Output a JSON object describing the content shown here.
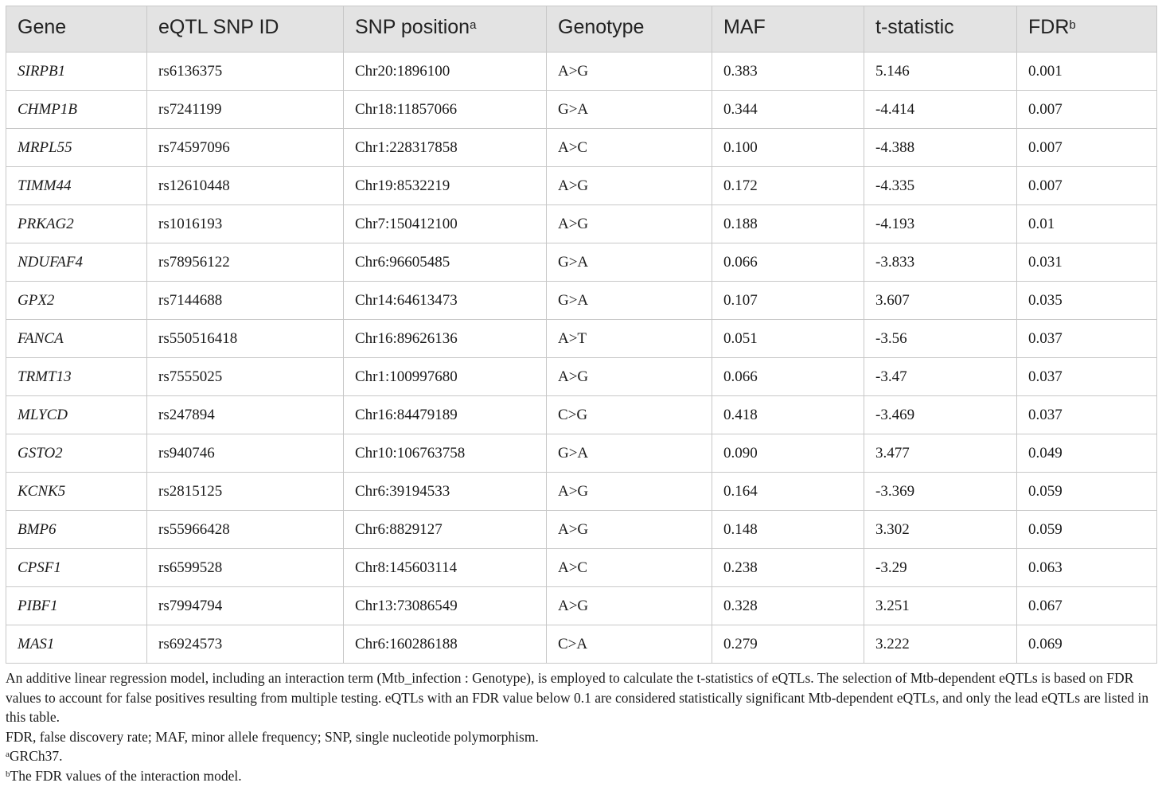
{
  "table": {
    "headers": [
      {
        "label": "Gene",
        "sup": ""
      },
      {
        "label": "eQTL SNP ID",
        "sup": ""
      },
      {
        "label": "SNP position",
        "sup": "a"
      },
      {
        "label": "Genotype",
        "sup": ""
      },
      {
        "label": "MAF",
        "sup": ""
      },
      {
        "label": "t-statistic",
        "sup": ""
      },
      {
        "label": "FDR",
        "sup": "b"
      }
    ],
    "rows": [
      [
        "SIRPB1",
        "rs6136375",
        "Chr20:1896100",
        "A>G",
        "0.383",
        "5.146",
        "0.001"
      ],
      [
        "CHMP1B",
        "rs7241199",
        "Chr18:11857066",
        "G>A",
        "0.344",
        "-4.414",
        "0.007"
      ],
      [
        "MRPL55",
        "rs74597096",
        "Chr1:228317858",
        "A>C",
        "0.100",
        "-4.388",
        "0.007"
      ],
      [
        "TIMM44",
        "rs12610448",
        "Chr19:8532219",
        "A>G",
        "0.172",
        "-4.335",
        "0.007"
      ],
      [
        "PRKAG2",
        "rs1016193",
        "Chr7:150412100",
        "A>G",
        "0.188",
        "-4.193",
        "0.01"
      ],
      [
        "NDUFAF4",
        "rs78956122",
        "Chr6:96605485",
        "G>A",
        "0.066",
        "-3.833",
        "0.031"
      ],
      [
        "GPX2",
        "rs7144688",
        "Chr14:64613473",
        "G>A",
        "0.107",
        "3.607",
        "0.035"
      ],
      [
        "FANCA",
        "rs550516418",
        "Chr16:89626136",
        "A>T",
        "0.051",
        "-3.56",
        "0.037"
      ],
      [
        "TRMT13",
        "rs7555025",
        "Chr1:100997680",
        "A>G",
        "0.066",
        "-3.47",
        "0.037"
      ],
      [
        "MLYCD",
        "rs247894",
        "Chr16:84479189",
        "C>G",
        "0.418",
        "-3.469",
        "0.037"
      ],
      [
        "GSTO2",
        "rs940746",
        "Chr10:106763758",
        "G>A",
        "0.090",
        "3.477",
        "0.049"
      ],
      [
        "KCNK5",
        "rs2815125",
        "Chr6:39194533",
        "A>G",
        "0.164",
        "-3.369",
        "0.059"
      ],
      [
        "BMP6",
        "rs55966428",
        "Chr6:8829127",
        "A>G",
        "0.148",
        "3.302",
        "0.059"
      ],
      [
        "CPSF1",
        "rs6599528",
        "Chr8:145603114",
        "A>C",
        "0.238",
        "-3.29",
        "0.063"
      ],
      [
        "PIBF1",
        "rs7994794",
        "Chr13:73086549",
        "A>G",
        "0.328",
        "3.251",
        "0.067"
      ],
      [
        "MAS1",
        "rs6924573",
        "Chr6:160286188",
        "C>A",
        "0.279",
        "3.222",
        "0.069"
      ]
    ]
  },
  "notes": {
    "description": "An additive linear regression model, including an interaction term (Mtb_infection : Genotype), is employed to calculate the t-statistics of eQTLs. The selection of Mtb-dependent eQTLs is based on FDR values to account for false positives resulting from multiple testing. eQTLs with an FDR value below 0.1 are considered statistically significant Mtb-dependent eQTLs, and only the lead eQTLs are listed in this table.",
    "abbreviations": "FDR, false discovery rate; MAF, minor allele frequency; SNP, single nucleotide polymorphism.",
    "footnote_a_mark": "a",
    "footnote_a": "GRCh37.",
    "footnote_b_mark": "b",
    "footnote_b": "The FDR values of the interaction model."
  }
}
